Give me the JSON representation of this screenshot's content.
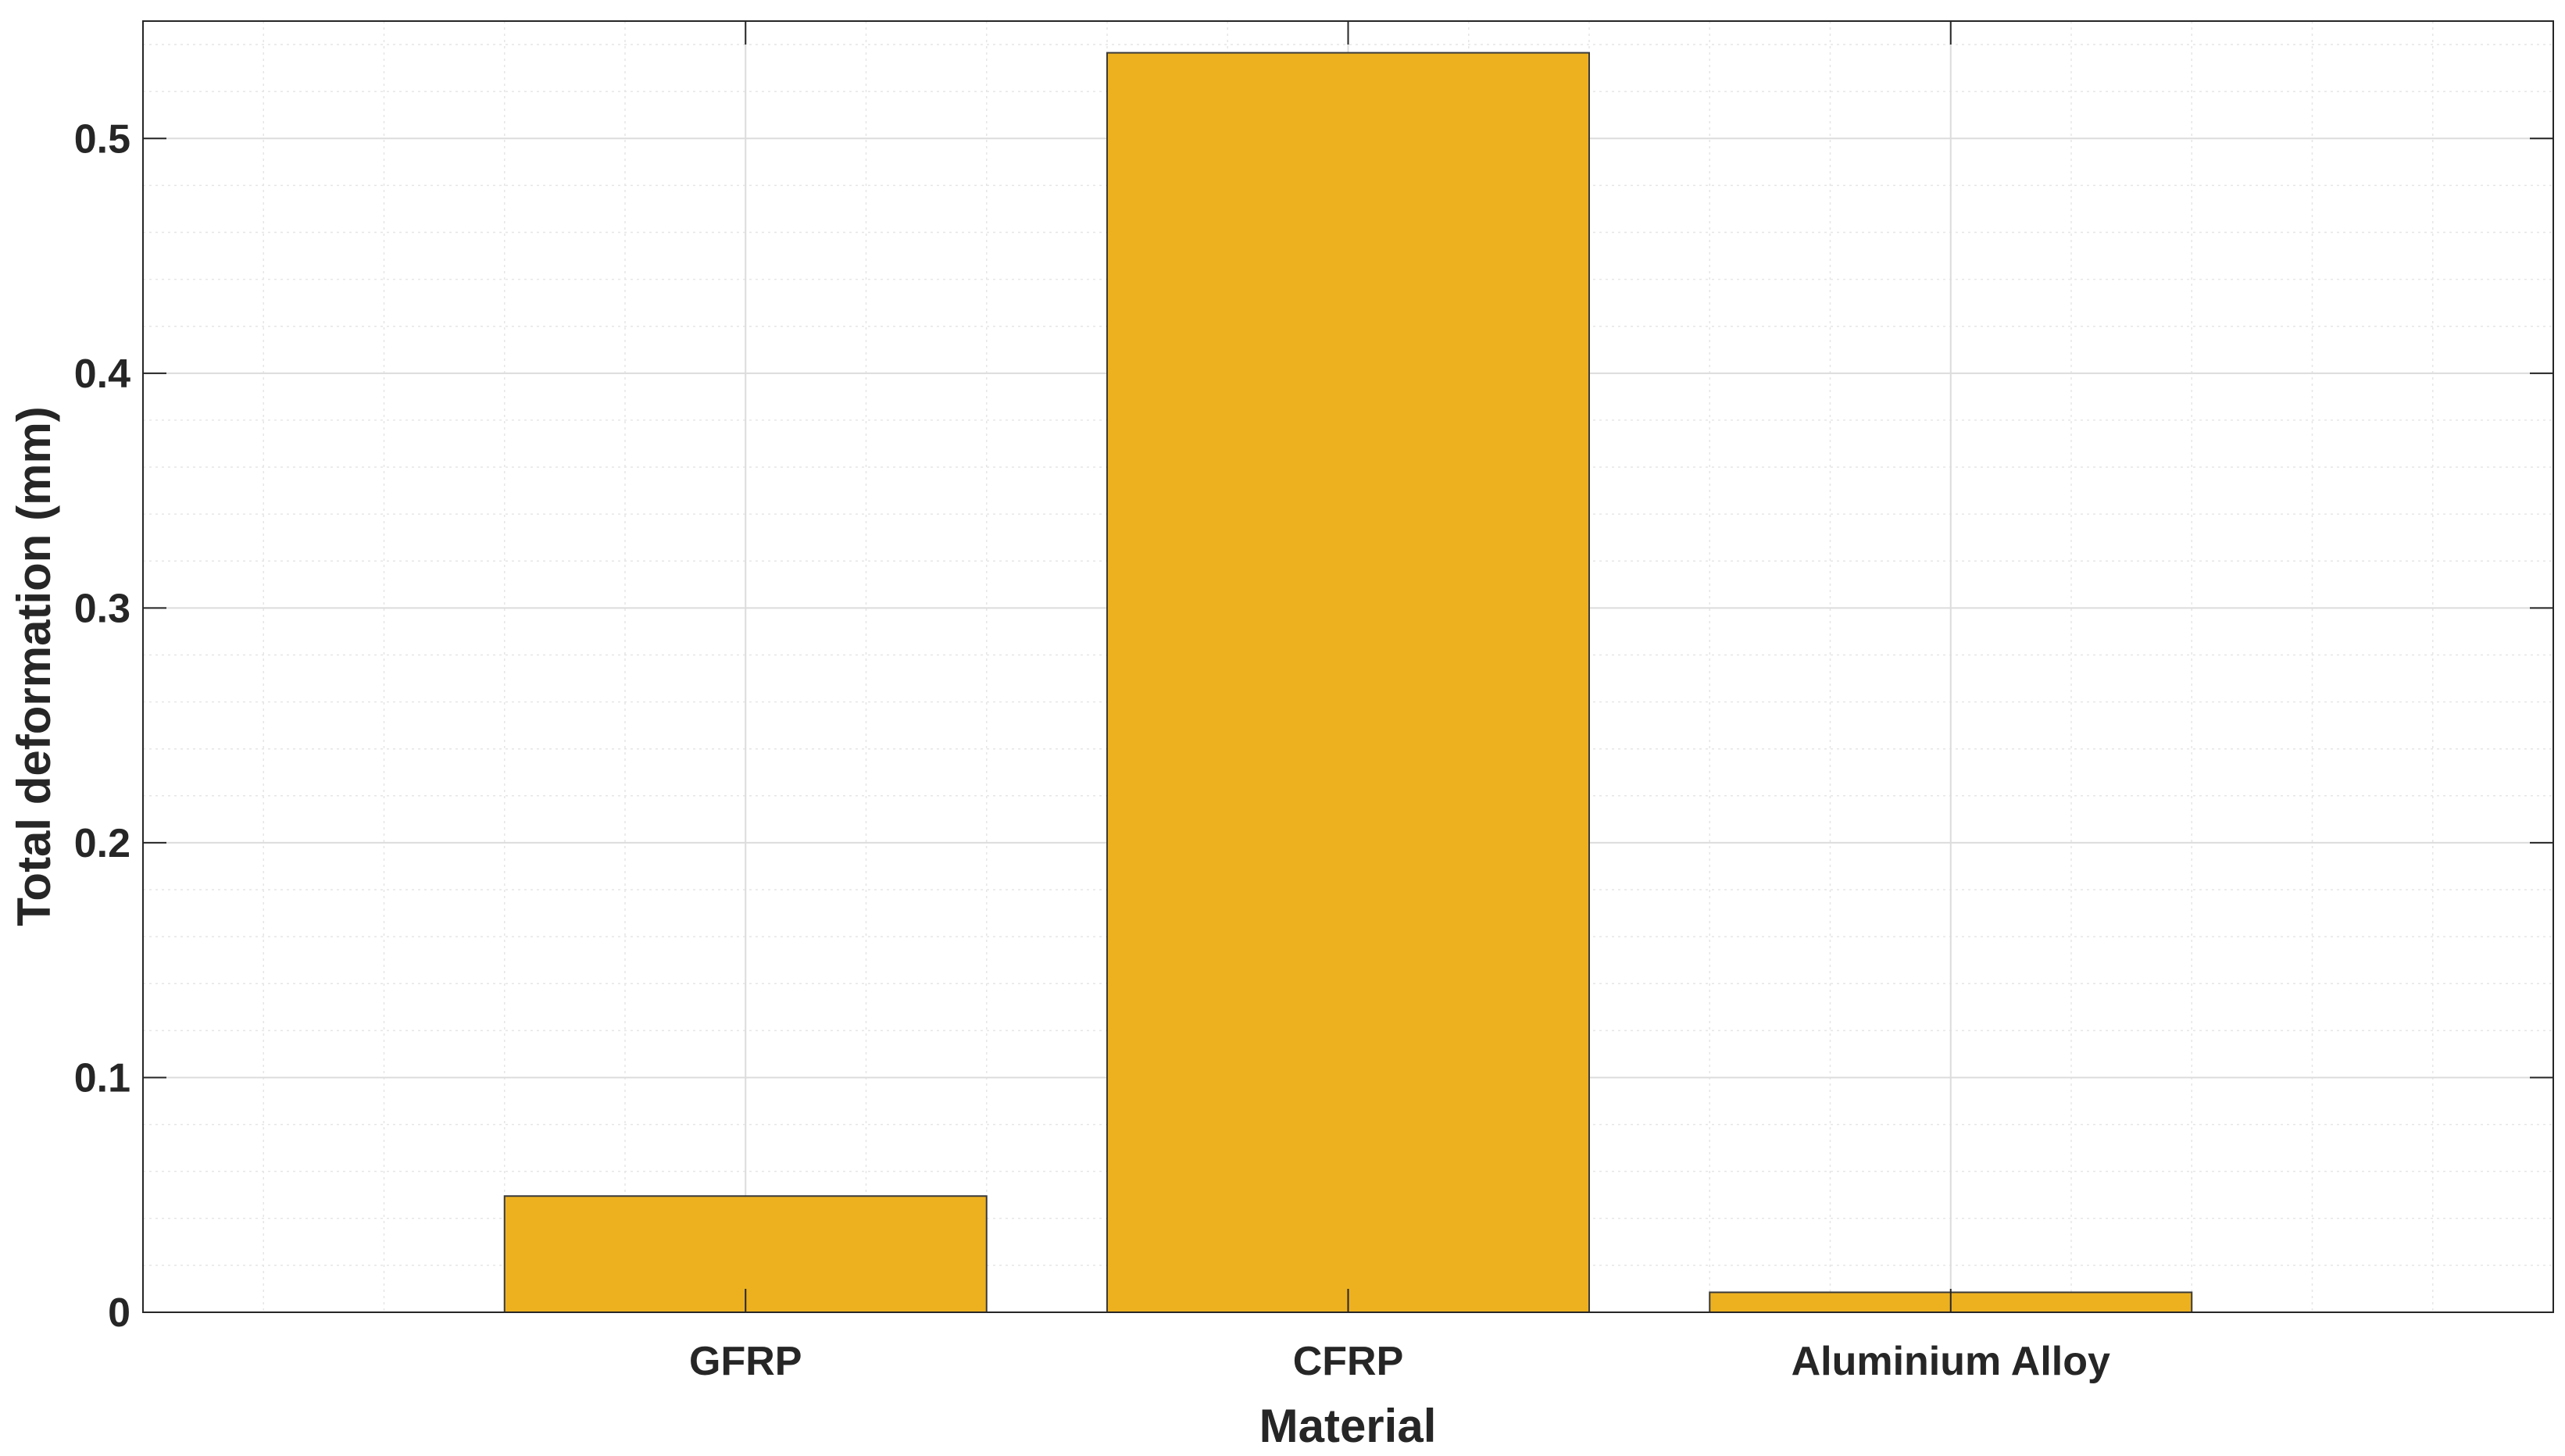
{
  "chart_data": {
    "type": "bar",
    "title": "",
    "xlabel": "Material",
    "ylabel": "Total deformation (mm)",
    "categories": [
      "GFRP",
      "CFRP",
      "Aluminium Alloy"
    ],
    "values": [
      0.0495,
      0.5365,
      0.0085
    ],
    "xlim": [
      0,
      4
    ],
    "ylim": [
      0,
      0.55
    ],
    "yticks": [
      0,
      0.1,
      0.2,
      0.3,
      0.4,
      0.5
    ],
    "ytick_labels": [
      "0",
      "0.1",
      "0.2",
      "0.3",
      "0.4",
      "0.5"
    ],
    "bar_width": 0.8,
    "grid": true,
    "minor_grid": true,
    "bar_color": "#EDB120",
    "bar_edge_color": "#3a3a3a"
  }
}
